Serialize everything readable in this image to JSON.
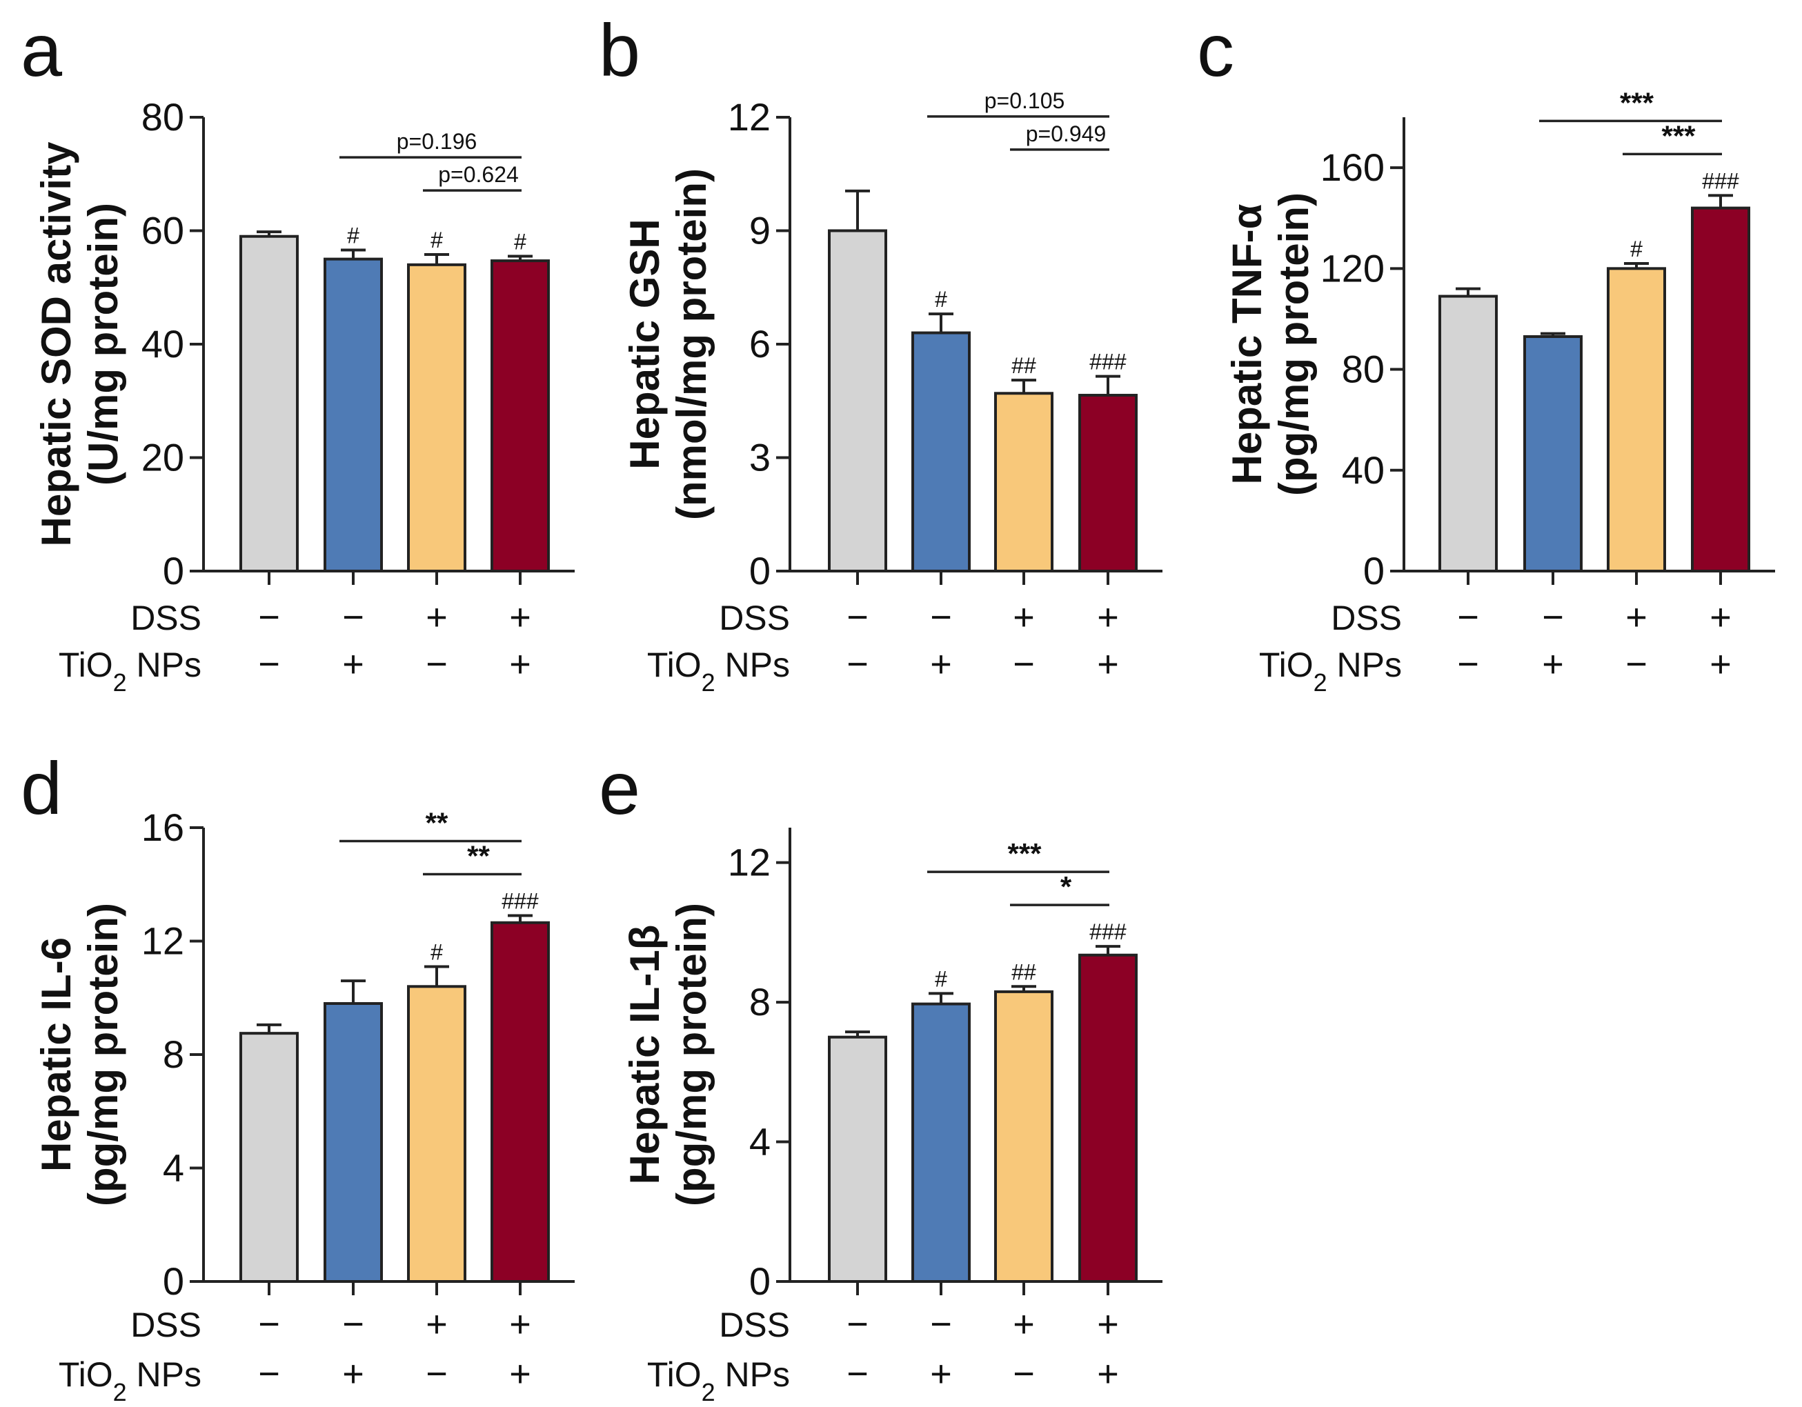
{
  "figure": {
    "row_labels": {
      "dss": "DSS",
      "tio2_prefix": "TiO",
      "tio2_sub": "2",
      "tio2_suffix": " NPs"
    },
    "signs": {
      "minus": "−",
      "plus": "+"
    }
  },
  "chart_data": [
    {
      "type": "bar",
      "panel": "a",
      "ylabel_line1": "Hepatic SOD activity",
      "ylabel_line2": "(U/mg protein)",
      "ylim": [
        0,
        80
      ],
      "yticks": [
        0,
        20,
        40,
        60,
        80
      ],
      "categories": [
        "Control",
        "TiO2 NPs",
        "DSS",
        "DSS + TiO2 NPs"
      ],
      "values": [
        59,
        55,
        54,
        54.7
      ],
      "errors": [
        0.8,
        1.6,
        1.8,
        0.8
      ],
      "hash_labels": [
        "",
        "#",
        "#",
        "#"
      ],
      "dss": [
        "-",
        "-",
        "+",
        "+"
      ],
      "tio2": [
        "-",
        "+",
        "-",
        "+"
      ],
      "comparisons": [
        {
          "from": 1,
          "to": 3,
          "level": 1,
          "label": "p=0.196",
          "kind": "p"
        },
        {
          "from": 2,
          "to": 3,
          "level": 0,
          "label": "p=0.624",
          "kind": "p"
        }
      ]
    },
    {
      "type": "bar",
      "panel": "b",
      "ylabel_line1": "Hepatic GSH",
      "ylabel_line2": "(nmol/mg protein)",
      "ylim": [
        0,
        12
      ],
      "yticks": [
        0,
        3,
        6,
        9,
        12
      ],
      "categories": [
        "Control",
        "TiO2 NPs",
        "DSS",
        "DSS + TiO2 NPs"
      ],
      "values": [
        9.0,
        6.3,
        4.7,
        4.65
      ],
      "errors": [
        1.05,
        0.5,
        0.35,
        0.5
      ],
      "hash_labels": [
        "",
        "#",
        "##",
        "###"
      ],
      "dss": [
        "-",
        "-",
        "+",
        "+"
      ],
      "tio2": [
        "-",
        "+",
        "-",
        "+"
      ],
      "comparisons": [
        {
          "from": 1,
          "to": 3,
          "level": 1,
          "label": "p=0.105",
          "kind": "p"
        },
        {
          "from": 2,
          "to": 3,
          "level": 0,
          "label": "p=0.949",
          "kind": "p"
        }
      ]
    },
    {
      "type": "bar",
      "panel": "c",
      "ylabel_line1": "Hepatic TNF-α",
      "ylabel_line2": "(pg/mg protein)",
      "ylim": [
        0,
        180
      ],
      "yticks": [
        0,
        40,
        80,
        120,
        160
      ],
      "categories": [
        "Control",
        "TiO2 NPs",
        "DSS",
        "DSS + TiO2 NPs"
      ],
      "values": [
        109,
        93,
        120,
        144
      ],
      "errors": [
        3,
        1.2,
        2,
        5
      ],
      "hash_labels": [
        "",
        "",
        "#",
        "###"
      ],
      "dss": [
        "-",
        "-",
        "+",
        "+"
      ],
      "tio2": [
        "-",
        "+",
        "-",
        "+"
      ],
      "comparisons": [
        {
          "from": 1,
          "to": 3,
          "level": 1,
          "label": "***",
          "kind": "star"
        },
        {
          "from": 2,
          "to": 3,
          "level": 0,
          "label": "***",
          "kind": "star"
        }
      ]
    },
    {
      "type": "bar",
      "panel": "d",
      "ylabel_line1": "Hepatic IL-6",
      "ylabel_line2": "(pg/mg protein)",
      "ylim": [
        0,
        16
      ],
      "yticks": [
        0,
        4,
        8,
        12,
        16
      ],
      "categories": [
        "Control",
        "TiO2 NPs",
        "DSS",
        "DSS + TiO2 NPs"
      ],
      "values": [
        8.75,
        9.8,
        10.4,
        12.65
      ],
      "errors": [
        0.3,
        0.8,
        0.7,
        0.25
      ],
      "hash_labels": [
        "",
        "",
        "#",
        "###"
      ],
      "dss": [
        "-",
        "-",
        "+",
        "+"
      ],
      "tio2": [
        "-",
        "+",
        "-",
        "+"
      ],
      "comparisons": [
        {
          "from": 1,
          "to": 3,
          "level": 1,
          "label": "**",
          "kind": "star"
        },
        {
          "from": 2,
          "to": 3,
          "level": 0,
          "label": "**",
          "kind": "star"
        }
      ]
    },
    {
      "type": "bar",
      "panel": "e",
      "ylabel_line1": "Hepatic IL-1β",
      "ylabel_line2": "(pg/mg protein)",
      "ylim": [
        0,
        13
      ],
      "yticks": [
        0,
        4,
        8,
        12
      ],
      "categories": [
        "Control",
        "TiO2 NPs",
        "DSS",
        "DSS + TiO2 NPs"
      ],
      "values": [
        7.0,
        7.95,
        8.3,
        9.35
      ],
      "errors": [
        0.15,
        0.3,
        0.15,
        0.25
      ],
      "hash_labels": [
        "",
        "#",
        "##",
        "###"
      ],
      "dss": [
        "-",
        "-",
        "+",
        "+"
      ],
      "tio2": [
        "-",
        "+",
        "-",
        "+"
      ],
      "comparisons": [
        {
          "from": 1,
          "to": 3,
          "level": 1,
          "label": "***",
          "kind": "star"
        },
        {
          "from": 2,
          "to": 3,
          "level": 0,
          "label": "*",
          "kind": "star"
        }
      ]
    }
  ],
  "colors": {
    "bars": [
      "#d4d4d4",
      "#4f7bb5",
      "#f8c87a",
      "#8c0025"
    ],
    "axis": "#222222"
  }
}
